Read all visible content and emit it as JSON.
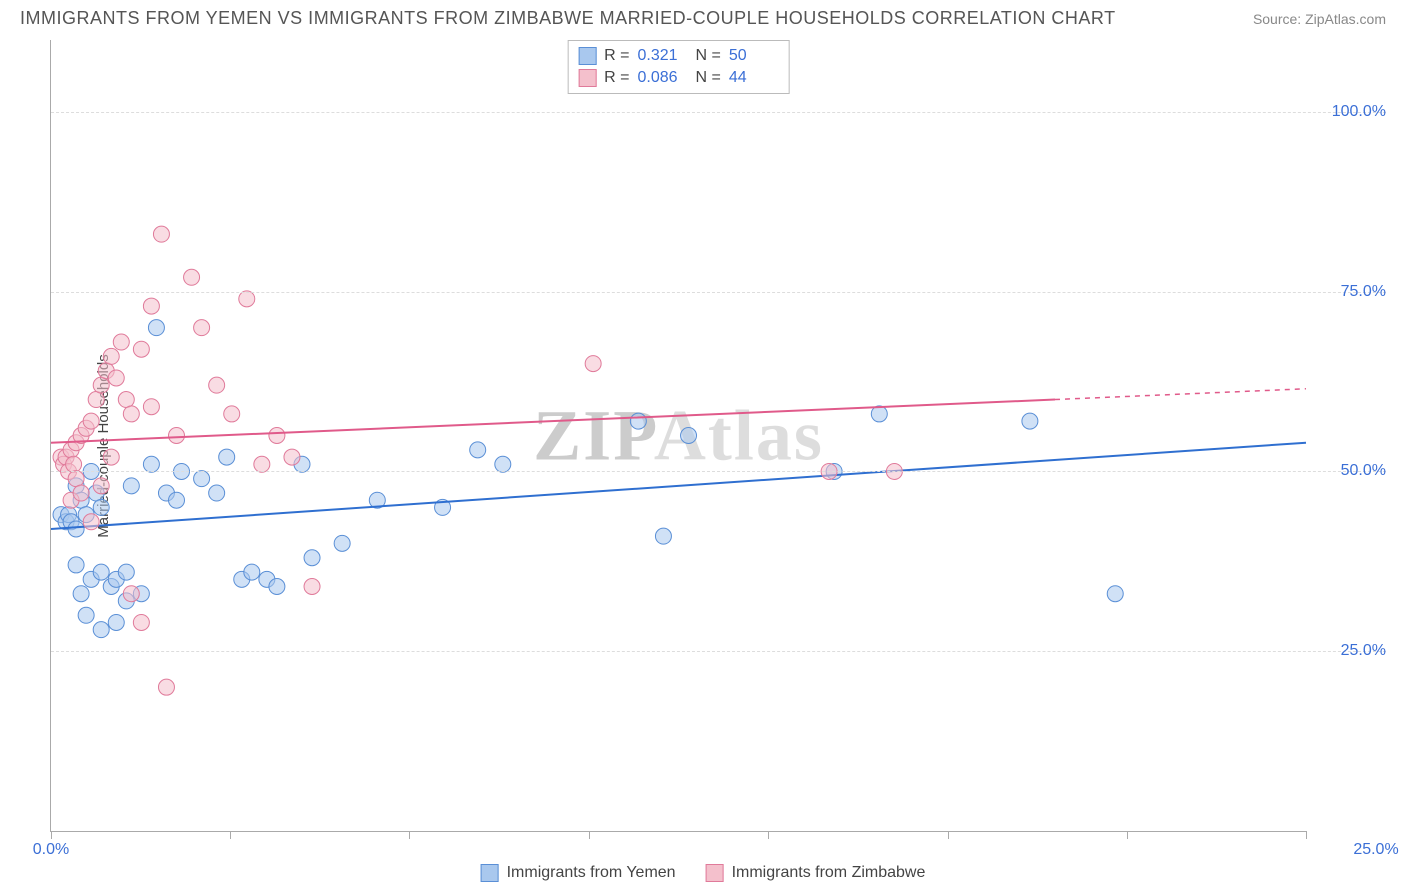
{
  "header": {
    "title": "IMMIGRANTS FROM YEMEN VS IMMIGRANTS FROM ZIMBABWE MARRIED-COUPLE HOUSEHOLDS CORRELATION CHART",
    "source": "Source: ZipAtlas.com"
  },
  "chart": {
    "type": "scatter",
    "ylabel": "Married-couple Households",
    "watermark": "ZIPAtlas",
    "xlim": [
      0,
      25
    ],
    "ylim": [
      0,
      110
    ],
    "xticks": [
      0,
      3.57,
      7.14,
      10.71,
      14.29,
      17.86,
      21.43,
      25
    ],
    "xtick_labels_shown": {
      "0": "0.0%",
      "25": "25.0%"
    },
    "yticks": [
      25,
      50,
      75,
      100
    ],
    "ytick_labels": [
      "25.0%",
      "50.0%",
      "75.0%",
      "100.0%"
    ],
    "grid_color": "#dddddd",
    "background_color": "#ffffff",
    "marker_radius": 8,
    "marker_opacity": 0.55,
    "series": [
      {
        "name": "Immigrants from Yemen",
        "color_fill": "#a9c8ee",
        "color_stroke": "#5a8fd6",
        "line_color": "#2f6fd0",
        "r": "0.321",
        "n": "50",
        "trend": {
          "x1": 0,
          "y1": 42,
          "x2": 25,
          "y2": 54
        },
        "points": [
          [
            0.2,
            44
          ],
          [
            0.3,
            43
          ],
          [
            0.35,
            44
          ],
          [
            0.4,
            43
          ],
          [
            0.5,
            42
          ],
          [
            0.5,
            48
          ],
          [
            0.6,
            46
          ],
          [
            0.7,
            44
          ],
          [
            0.8,
            50
          ],
          [
            0.9,
            47
          ],
          [
            1.0,
            45
          ],
          [
            0.5,
            37
          ],
          [
            0.8,
            35
          ],
          [
            1.0,
            36
          ],
          [
            1.2,
            34
          ],
          [
            1.3,
            35
          ],
          [
            1.5,
            36
          ],
          [
            1.8,
            33
          ],
          [
            1.0,
            28
          ],
          [
            1.3,
            29
          ],
          [
            0.7,
            30
          ],
          [
            1.6,
            48
          ],
          [
            2.0,
            51
          ],
          [
            2.1,
            70
          ],
          [
            2.3,
            47
          ],
          [
            2.5,
            46
          ],
          [
            2.6,
            50
          ],
          [
            3.0,
            49
          ],
          [
            3.3,
            47
          ],
          [
            3.5,
            52
          ],
          [
            3.8,
            35
          ],
          [
            4.0,
            36
          ],
          [
            4.3,
            35
          ],
          [
            4.5,
            34
          ],
          [
            5.0,
            51
          ],
          [
            5.2,
            38
          ],
          [
            5.8,
            40
          ],
          [
            6.5,
            46
          ],
          [
            7.8,
            45
          ],
          [
            8.5,
            53
          ],
          [
            9.0,
            51
          ],
          [
            11.7,
            57
          ],
          [
            12.2,
            41
          ],
          [
            12.7,
            55
          ],
          [
            15.6,
            50
          ],
          [
            16.5,
            58
          ],
          [
            19.5,
            57
          ],
          [
            21.2,
            33
          ],
          [
            1.5,
            32
          ],
          [
            0.6,
            33
          ]
        ]
      },
      {
        "name": "Immigrants from Zimbabwe",
        "color_fill": "#f4c0cc",
        "color_stroke": "#e07a9a",
        "line_color": "#e05a8a",
        "r": "0.086",
        "n": "44",
        "trend": {
          "x1": 0,
          "y1": 54,
          "x2": 20,
          "y2": 60
        },
        "trend_dashed": {
          "x1": 20,
          "y1": 60,
          "x2": 25,
          "y2": 61.5
        },
        "points": [
          [
            0.2,
            52
          ],
          [
            0.25,
            51
          ],
          [
            0.3,
            52
          ],
          [
            0.35,
            50
          ],
          [
            0.4,
            53
          ],
          [
            0.45,
            51
          ],
          [
            0.5,
            54
          ],
          [
            0.5,
            49
          ],
          [
            0.6,
            55
          ],
          [
            0.7,
            56
          ],
          [
            0.8,
            57
          ],
          [
            0.9,
            60
          ],
          [
            1.0,
            62
          ],
          [
            1.1,
            64
          ],
          [
            1.2,
            66
          ],
          [
            1.3,
            63
          ],
          [
            1.4,
            68
          ],
          [
            1.5,
            60
          ],
          [
            1.6,
            58
          ],
          [
            1.8,
            67
          ],
          [
            2.0,
            73
          ],
          [
            2.2,
            83
          ],
          [
            2.5,
            55
          ],
          [
            2.8,
            77
          ],
          [
            3.0,
            70
          ],
          [
            3.3,
            62
          ],
          [
            3.6,
            58
          ],
          [
            3.9,
            74
          ],
          [
            4.2,
            51
          ],
          [
            4.5,
            55
          ],
          [
            4.8,
            52
          ],
          [
            5.2,
            34
          ],
          [
            2.3,
            20
          ],
          [
            1.6,
            33
          ],
          [
            1.8,
            29
          ],
          [
            0.4,
            46
          ],
          [
            0.6,
            47
          ],
          [
            0.8,
            43
          ],
          [
            10.8,
            65
          ],
          [
            15.5,
            50
          ],
          [
            16.8,
            50
          ],
          [
            1.0,
            48
          ],
          [
            1.2,
            52
          ],
          [
            2.0,
            59
          ]
        ]
      }
    ]
  },
  "legend_bottom": {
    "items": [
      {
        "label": "Immigrants from Yemen",
        "fill": "#a9c8ee",
        "stroke": "#5a8fd6"
      },
      {
        "label": "Immigrants from Zimbabwe",
        "fill": "#f4c0cc",
        "stroke": "#e07a9a"
      }
    ]
  }
}
